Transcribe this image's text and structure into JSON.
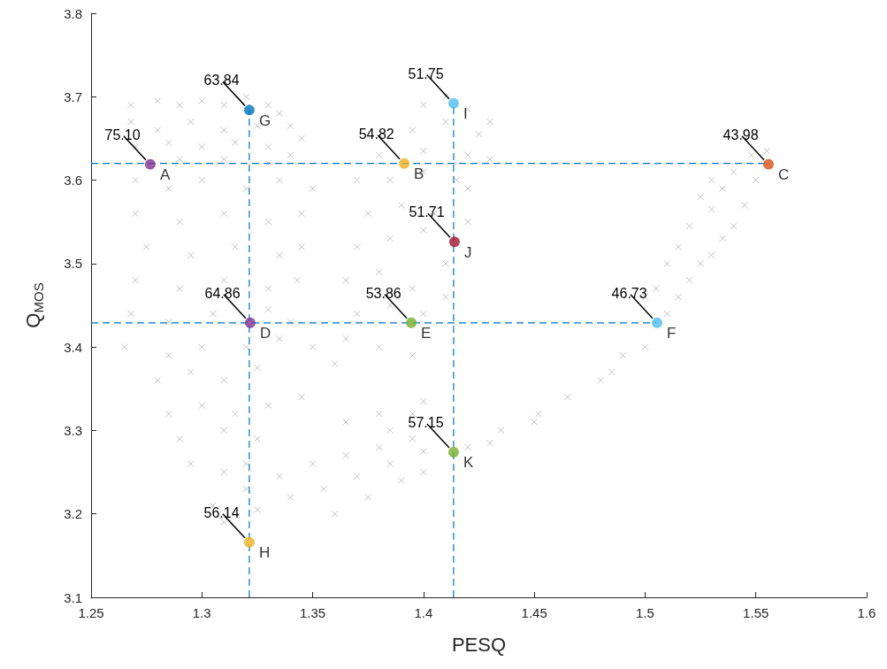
{
  "chart_data": {
    "type": "scatter",
    "xlabel": "PESQ",
    "ylabel": "Q$_{MOS}$",
    "xlim": [
      1.25,
      1.6
    ],
    "ylim": [
      3.1,
      3.8
    ],
    "xticks": [
      1.25,
      1.3,
      1.35,
      1.4,
      1.45,
      1.5,
      1.55,
      1.6
    ],
    "yticks": [
      3.1,
      3.2,
      3.3,
      3.4,
      3.5,
      3.6,
      3.7,
      3.8
    ],
    "grid": false,
    "legend": false,
    "series": [
      {
        "color": "#b3b3b3",
        "marker": "cross",
        "x": [
          1.268,
          1.28,
          1.29,
          1.3,
          1.31,
          1.32,
          1.33,
          1.335,
          1.268,
          1.28,
          1.295,
          1.31,
          1.325,
          1.34,
          1.345,
          1.27,
          1.285,
          1.3,
          1.315,
          1.33,
          1.34,
          1.29,
          1.31,
          1.33,
          1.27,
          1.285,
          1.3,
          1.32,
          1.335,
          1.35,
          1.27,
          1.29,
          1.31,
          1.33,
          1.345,
          1.275,
          1.295,
          1.315,
          1.335,
          1.345,
          1.27,
          1.29,
          1.31,
          1.33,
          1.343,
          1.268,
          1.285,
          1.305,
          1.33,
          1.34,
          1.265,
          1.285,
          1.3,
          1.32,
          1.335,
          1.28,
          1.295,
          1.31,
          1.325,
          1.285,
          1.3,
          1.315,
          1.33,
          1.345,
          1.29,
          1.31,
          1.325,
          1.295,
          1.31,
          1.32,
          1.305,
          1.32,
          1.335,
          1.35,
          1.365,
          1.38,
          1.395,
          1.31,
          1.325,
          1.34,
          1.355,
          1.37,
          1.385,
          1.4,
          1.36,
          1.375,
          1.39,
          1.4,
          1.385,
          1.395,
          1.4,
          1.365,
          1.38,
          1.365,
          1.38,
          1.395,
          1.37,
          1.385,
          1.4,
          1.365,
          1.38,
          1.395,
          1.41,
          1.37,
          1.385,
          1.4,
          1.41,
          1.375,
          1.39,
          1.405,
          1.42,
          1.37,
          1.385,
          1.4,
          1.415,
          1.42,
          1.38,
          1.4,
          1.42,
          1.43,
          1.395,
          1.41,
          1.425,
          1.4,
          1.41,
          1.42,
          1.43,
          1.35,
          1.36,
          1.42,
          1.43,
          1.435,
          1.45,
          1.452,
          1.465,
          1.48,
          1.485,
          1.49,
          1.5,
          1.51,
          1.515,
          1.52,
          1.525,
          1.53,
          1.535,
          1.54,
          1.545,
          1.55,
          1.555,
          1.5,
          1.505,
          1.51,
          1.515,
          1.52,
          1.53,
          1.535,
          1.54,
          1.548,
          1.555,
          1.525,
          1.53
        ],
        "values": [
          3.69,
          3.695,
          3.69,
          3.695,
          3.69,
          3.7,
          3.69,
          3.68,
          3.67,
          3.66,
          3.67,
          3.66,
          3.665,
          3.665,
          3.65,
          3.64,
          3.645,
          3.64,
          3.645,
          3.64,
          3.63,
          3.625,
          3.625,
          3.62,
          3.6,
          3.59,
          3.6,
          3.59,
          3.6,
          3.59,
          3.56,
          3.55,
          3.56,
          3.55,
          3.56,
          3.52,
          3.51,
          3.52,
          3.51,
          3.52,
          3.48,
          3.47,
          3.48,
          3.47,
          3.48,
          3.44,
          3.43,
          3.44,
          3.445,
          3.43,
          3.4,
          3.39,
          3.4,
          3.4,
          3.41,
          3.36,
          3.37,
          3.36,
          3.375,
          3.32,
          3.33,
          3.32,
          3.33,
          3.34,
          3.29,
          3.3,
          3.29,
          3.26,
          3.25,
          3.26,
          3.21,
          3.23,
          3.245,
          3.26,
          3.27,
          3.28,
          3.29,
          3.19,
          3.205,
          3.22,
          3.23,
          3.245,
          3.26,
          3.275,
          3.2,
          3.22,
          3.24,
          3.25,
          3.3,
          3.32,
          3.335,
          3.31,
          3.32,
          3.41,
          3.4,
          3.39,
          3.44,
          3.45,
          3.44,
          3.48,
          3.49,
          3.47,
          3.46,
          3.52,
          3.53,
          3.54,
          3.5,
          3.56,
          3.57,
          3.56,
          3.55,
          3.6,
          3.6,
          3.61,
          3.6,
          3.59,
          3.63,
          3.635,
          3.63,
          3.625,
          3.66,
          3.67,
          3.655,
          3.69,
          3.7,
          3.685,
          3.67,
          3.4,
          3.38,
          3.28,
          3.285,
          3.3,
          3.31,
          3.32,
          3.34,
          3.36,
          3.37,
          3.39,
          3.4,
          3.44,
          3.46,
          3.48,
          3.5,
          3.51,
          3.53,
          3.545,
          3.57,
          3.6,
          3.62,
          3.46,
          3.47,
          3.5,
          3.52,
          3.545,
          3.565,
          3.59,
          3.61,
          3.63,
          3.635,
          3.58,
          3.6
        ]
      },
      {
        "type": "line",
        "color": "#0072bd",
        "line_style": "dashed",
        "marker": "none",
        "x": [
          1.25,
          1.5557
        ],
        "values": [
          3.62,
          3.62
        ]
      },
      {
        "type": "line",
        "color": "#0072bd",
        "line_style": "dashed",
        "marker": "none",
        "x": [
          1.25,
          1.5054
        ],
        "values": [
          3.429,
          3.429
        ]
      },
      {
        "type": "line",
        "color": "#0072bd",
        "line_style": "dashed",
        "marker": "none",
        "x": [
          1.3214,
          1.3214
        ],
        "values": [
          3.1,
          3.684
        ]
      },
      {
        "type": "line",
        "color": "#0072bd",
        "line_style": "dashed",
        "marker": "none",
        "x": [
          1.4136,
          1.4136
        ],
        "values": [
          3.1,
          3.692
        ]
      },
      {
        "name": "A",
        "color": "#7e2f8e",
        "marker": "circle",
        "x": [
          1.2767
        ],
        "values": [
          3.619
        ]
      },
      {
        "name": "G",
        "color": "#0072bd",
        "marker": "circle",
        "x": [
          1.3214
        ],
        "values": [
          3.684
        ]
      },
      {
        "name": "B",
        "color": "#edb120",
        "marker": "circle",
        "x": [
          1.3913
        ],
        "values": [
          3.62
        ]
      },
      {
        "name": "I",
        "color": "#4dbeee",
        "marker": "circle",
        "x": [
          1.4136
        ],
        "values": [
          3.692
        ]
      },
      {
        "name": "C",
        "color": "#d95319",
        "marker": "circle",
        "x": [
          1.5557
        ],
        "values": [
          3.619
        ]
      },
      {
        "name": "J",
        "color": "#a2142f",
        "marker": "circle",
        "x": [
          1.414
        ],
        "values": [
          3.526
        ]
      },
      {
        "name": "D",
        "color": "#7e2f8e",
        "marker": "circle",
        "x": [
          1.3218
        ],
        "values": [
          3.429
        ]
      },
      {
        "name": "E",
        "color": "#77ac30",
        "marker": "circle",
        "x": [
          1.3945
        ],
        "values": [
          3.429
        ]
      },
      {
        "name": "F",
        "color": "#4dbeee",
        "marker": "circle",
        "x": [
          1.5054
        ],
        "values": [
          3.429
        ]
      },
      {
        "name": "K",
        "color": "#77ac30",
        "marker": "circle",
        "x": [
          1.4136
        ],
        "values": [
          3.274
        ]
      },
      {
        "name": "H",
        "color": "#edb120",
        "marker": "circle",
        "x": [
          1.3214
        ],
        "values": [
          3.166
        ]
      }
    ],
    "annotations": [
      {
        "text": "75.10",
        "x": 1.2767,
        "y": 3.619
      },
      {
        "text": "63.84",
        "x": 1.3214,
        "y": 3.684
      },
      {
        "text": "54.82",
        "x": 1.3913,
        "y": 3.62
      },
      {
        "text": "51.75",
        "x": 1.4136,
        "y": 3.692
      },
      {
        "text": "43.98",
        "x": 1.5557,
        "y": 3.619
      },
      {
        "text": "51.71",
        "x": 1.414,
        "y": 3.526
      },
      {
        "text": "64.86",
        "x": 1.3218,
        "y": 3.429
      },
      {
        "text": "53.86",
        "x": 1.3945,
        "y": 3.429
      },
      {
        "text": "46.73",
        "x": 1.5054,
        "y": 3.429
      },
      {
        "text": "57.15",
        "x": 1.4136,
        "y": 3.274
      },
      {
        "text": "56.14",
        "x": 1.3214,
        "y": 3.166
      }
    ]
  }
}
